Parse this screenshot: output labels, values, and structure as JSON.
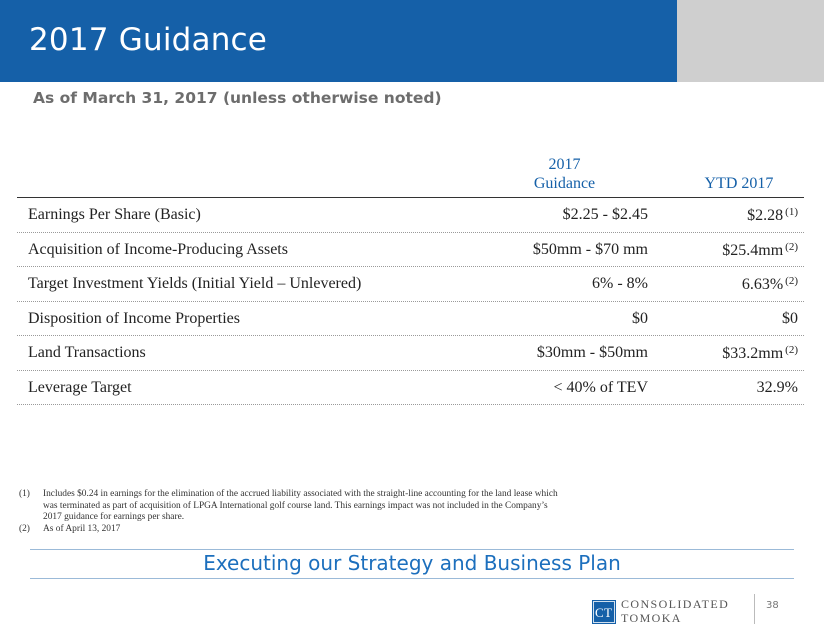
{
  "slide": {
    "title": "2017 Guidance",
    "subtitle": "As of March 31, 2017 (unless otherwise noted)",
    "colors": {
      "title_bar": "#1560a8",
      "corner_box": "#cfcfcf",
      "header_text": "#1560a8",
      "strategy_text": "#1c6fbd"
    }
  },
  "table": {
    "headers": {
      "guidance_line1": "2017",
      "guidance_line2": "Guidance",
      "ytd": "YTD 2017"
    },
    "rows": [
      {
        "label": "Earnings Per Share (Basic)",
        "guidance": "$2.25 - $2.45",
        "ytd": "$2.28",
        "note": "(1)"
      },
      {
        "label": "Acquisition of Income-Producing Assets",
        "guidance": "$50mm - $70 mm",
        "ytd": "$25.4mm",
        "note": "(2)"
      },
      {
        "label": "Target Investment Yields (Initial Yield – Unlevered)",
        "guidance": "6% - 8%",
        "ytd": "6.63%",
        "note": "(2)"
      },
      {
        "label": "Disposition of Income Properties",
        "guidance": "$0",
        "ytd": "$0",
        "note": ""
      },
      {
        "label": "Land Transactions",
        "guidance": "$30mm - $50mm",
        "ytd": "$33.2mm",
        "note": "(2)"
      },
      {
        "label": "Leverage Target",
        "guidance": "< 40% of TEV",
        "ytd": "32.9%",
        "note": ""
      }
    ]
  },
  "footnotes": [
    {
      "num": "(1)",
      "text": "Includes $0.24 in earnings for the elimination of the accrued liability associated with the straight-line accounting for the land lease which was terminated as part of acquisition of LPGA International golf course land. This earnings impact was not included in the Company’s 2017 guidance for earnings per share."
    },
    {
      "num": "(2)",
      "text": "As of April 13, 2017"
    }
  ],
  "footer": {
    "strategy": "Executing our Strategy and Business Plan",
    "logo_line1": "CONSOLIDATED",
    "logo_line2": "TOMOKA",
    "logo_icon": "ct-logo-icon",
    "page_number": "38"
  }
}
